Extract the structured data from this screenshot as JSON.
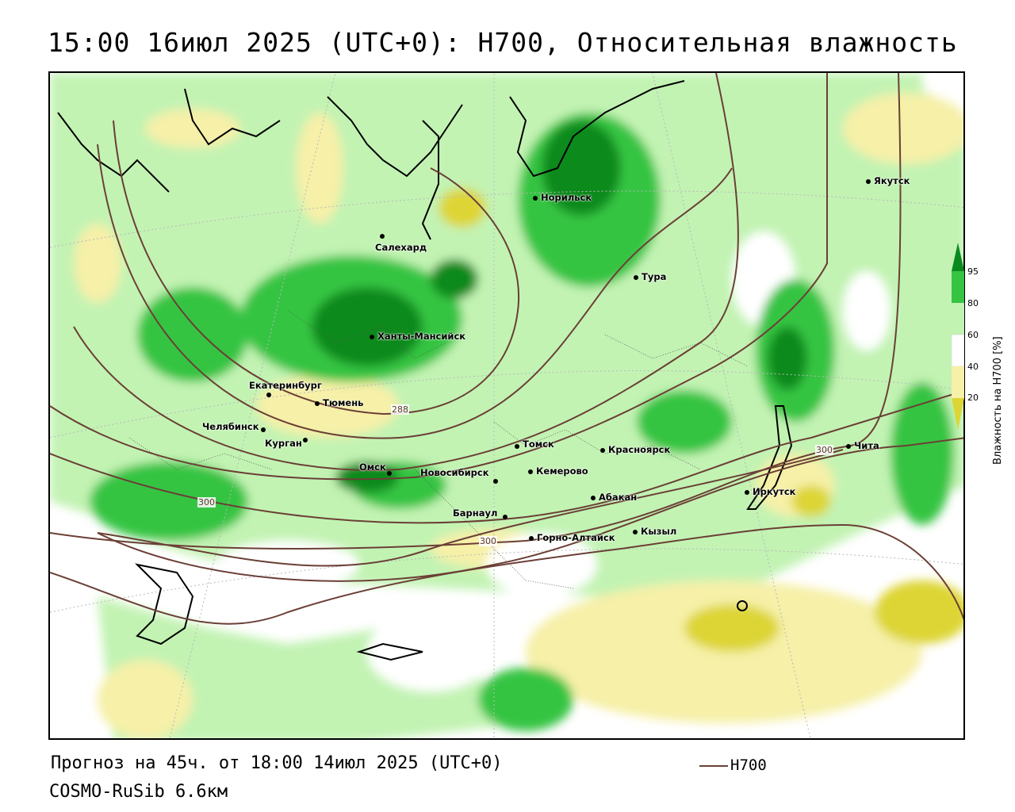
{
  "title": "15:00 16июл 2025 (UTC+0): H700, Относительная влажность",
  "footer": {
    "forecast": "Прогноз на 45ч. от 18:00 14июл 2025 (UTC+0)",
    "model": "COSMO-RuSib 6.6км"
  },
  "legend": {
    "contour_label": "H700",
    "contour_color": "#6b3f36",
    "colorbar_title": "Влажность на H700 [%]",
    "colorbar_ticks": [
      "95",
      "80",
      "60",
      "40",
      "20"
    ],
    "colors": {
      "dark_green": "#0a8a1e",
      "green": "#36c443",
      "light_green": "#c2f3b3",
      "white": "#ffffff",
      "light_yellow": "#f6f0a8",
      "yellow": "#ddd535"
    }
  },
  "contour_labels": [
    "288",
    "300",
    "300",
    "300"
  ],
  "cities": [
    "Якутск",
    "Норильск",
    "Салехард",
    "Тура",
    "Ханты-Мансийск",
    "Екатеринбург",
    "Тюмень",
    "Челябинск",
    "Курган",
    "Омск",
    "Томск",
    "Красноярск",
    "Новосибирск",
    "Кемерово",
    "Чита",
    "Иркутск",
    "Абакан",
    "Барнаул",
    "Горно-Алтайск",
    "Кызыл"
  ]
}
